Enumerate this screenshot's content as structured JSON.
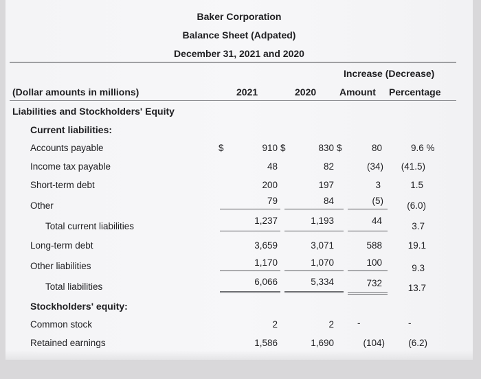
{
  "header": {
    "company": "Baker Corporation",
    "statement": "Balance Sheet (Adpated)",
    "date": "December 31, 2021 and 2020"
  },
  "columns": {
    "group_label": "Increase (Decrease)",
    "label_caption": "(Dollar amounts in millions)",
    "year1": "2021",
    "year2": "2020",
    "amount": "Amount",
    "percentage": "Percentage"
  },
  "section_title": "Liabilities and Stockholders' Equity",
  "current_liabilities_title": "Current liabilities:",
  "equity_title": "Stockholders' equity:",
  "rows": [
    {
      "label": "Accounts payable",
      "cur_sign": "$",
      "y2021": "910",
      "y2021_sign": "$",
      "y2020": "830",
      "y2020_sign": "$",
      "amount": "80",
      "pct": "9.6 %"
    },
    {
      "label": "Income tax payable",
      "y2021": "48",
      "y2020": "82",
      "amount": "(34)",
      "pct": "(41.5)"
    },
    {
      "label": "Short-term debt",
      "y2021": "200",
      "y2020": "197",
      "amount": "3",
      "pct": "1.5"
    },
    {
      "label": "Other",
      "y2021": "79",
      "y2020": "84",
      "amount": "(5)",
      "pct": "(6.0)"
    },
    {
      "label": "Total current liabilities",
      "y2021": "1,237",
      "y2020": "1,193",
      "amount": "44",
      "pct": "3.7"
    },
    {
      "label": "Long-term debt",
      "y2021": "3,659",
      "y2020": "3,071",
      "amount": "588",
      "pct": "19.1"
    },
    {
      "label": "Other liabilities",
      "y2021": "1,170",
      "y2020": "1,070",
      "amount": "100",
      "pct": "9.3"
    },
    {
      "label": "Total liabilities",
      "y2021": "6,066",
      "y2020": "5,334",
      "amount": "732",
      "pct": "13.7"
    },
    {
      "label": "Common stock",
      "y2021": "2",
      "y2020": "2",
      "amount": "-",
      "pct": "-"
    },
    {
      "label": "Retained earnings",
      "y2021": "1,586",
      "y2020": "1,690",
      "amount": "(104)",
      "pct": "(6.2)"
    }
  ]
}
